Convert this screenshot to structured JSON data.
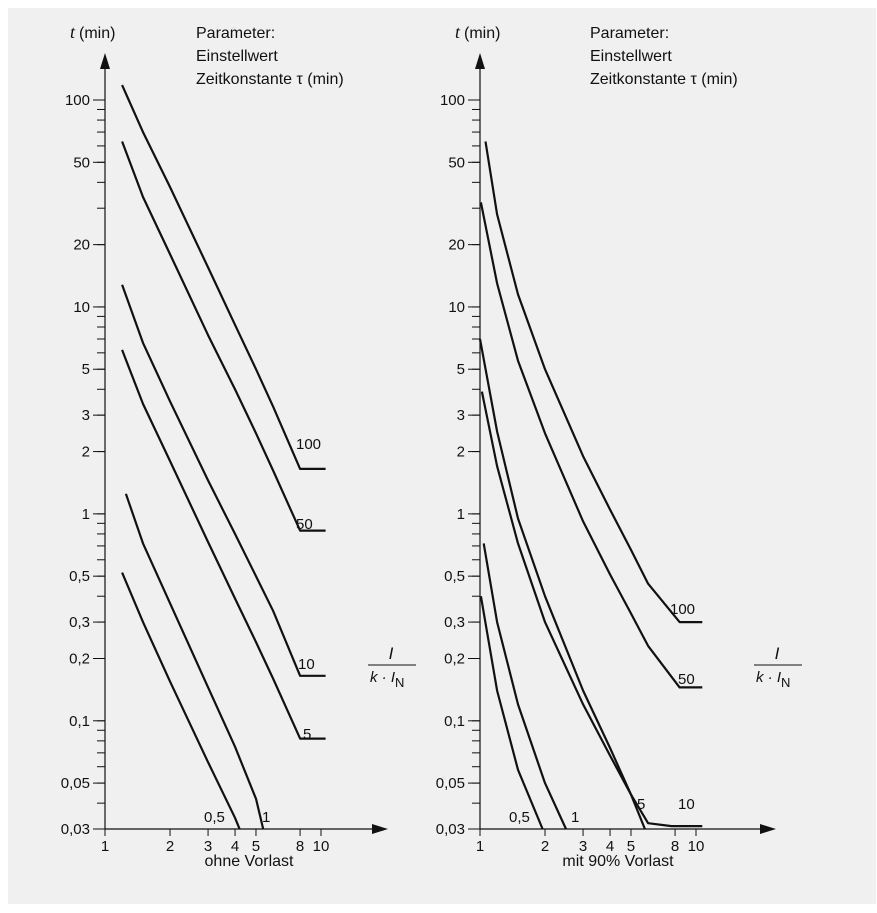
{
  "chart_data": [
    {
      "type": "line",
      "title": "ohne Vorlast",
      "ylabel_italic": "t",
      "ylabel_unit": "(min)",
      "xlabel_num": "I",
      "xlabel_den": "k · I",
      "xlabel_den_sub": "N",
      "x_scale": "log",
      "y_scale": "log",
      "xlim": [
        1,
        10
      ],
      "ylim": [
        0.03,
        100
      ],
      "x_ticks": [
        {
          "v": 1,
          "label": "1"
        },
        {
          "v": 2,
          "label": "2"
        },
        {
          "v": 3,
          "label": "3"
        },
        {
          "v": 4,
          "label": "4"
        },
        {
          "v": 5,
          "label": "5"
        },
        {
          "v": 8,
          "label": "8"
        },
        {
          "v": 10,
          "label": "10"
        }
      ],
      "y_ticks": [
        {
          "v": 100,
          "label": "100"
        },
        {
          "v": 50,
          "label": "50"
        },
        {
          "v": 20,
          "label": "20"
        },
        {
          "v": 10,
          "label": "10"
        },
        {
          "v": 5,
          "label": "5"
        },
        {
          "v": 3,
          "label": "3"
        },
        {
          "v": 2,
          "label": "2"
        },
        {
          "v": 1,
          "label": "1"
        },
        {
          "v": 0.5,
          "label": "0,5"
        },
        {
          "v": 0.3,
          "label": "0,3"
        },
        {
          "v": 0.2,
          "label": "0,2"
        },
        {
          "v": 0.1,
          "label": "0,1"
        },
        {
          "v": 0.05,
          "label": "0,05"
        },
        {
          "v": 0.03,
          "label": "0,03"
        }
      ],
      "parameter_lines": [
        "Parameter:",
        "Einstellwert",
        "Zeitkonstante τ (min)"
      ],
      "grid": false,
      "series": [
        {
          "name": "100",
          "x": [
            1.2,
            1.5,
            2,
            3,
            4,
            5,
            6,
            8,
            10.5
          ],
          "y": [
            118,
            70,
            38,
            15.5,
            8.2,
            5,
            3.3,
            1.65,
            1.65
          ]
        },
        {
          "name": "50",
          "x": [
            1.2,
            1.5,
            2,
            3,
            4,
            5,
            6,
            8,
            10.5
          ],
          "y": [
            63,
            34,
            18,
            7.3,
            4,
            2.45,
            1.62,
            0.83,
            0.83
          ]
        },
        {
          "name": "10",
          "x": [
            1.2,
            1.5,
            2,
            3,
            4,
            5,
            6,
            8,
            10.5
          ],
          "y": [
            12.8,
            6.7,
            3.5,
            1.45,
            0.8,
            0.5,
            0.34,
            0.165,
            0.165
          ]
        },
        {
          "name": "5",
          "x": [
            1.2,
            1.5,
            2,
            3,
            4,
            5,
            6,
            8,
            10.5
          ],
          "y": [
            6.2,
            3.4,
            1.8,
            0.73,
            0.39,
            0.24,
            0.16,
            0.082,
            0.082
          ]
        },
        {
          "name": "1",
          "x": [
            1.25,
            1.5,
            2,
            3,
            4,
            5,
            5.4
          ],
          "y": [
            1.25,
            0.72,
            0.37,
            0.145,
            0.075,
            0.042,
            0.03
          ]
        },
        {
          "name": "0,5",
          "x": [
            1.2,
            1.5,
            2,
            3,
            4,
            4.2
          ],
          "y": [
            0.52,
            0.3,
            0.155,
            0.063,
            0.034,
            0.03
          ]
        }
      ]
    },
    {
      "type": "line",
      "title": "mit 90% Vorlast",
      "ylabel_italic": "t",
      "ylabel_unit": "(min)",
      "xlabel_num": "I",
      "xlabel_den": "k · I",
      "xlabel_den_sub": "N",
      "x_scale": "log",
      "y_scale": "log",
      "xlim": [
        1,
        10
      ],
      "ylim": [
        0.03,
        100
      ],
      "x_ticks": [
        {
          "v": 1,
          "label": "1"
        },
        {
          "v": 2,
          "label": "2"
        },
        {
          "v": 3,
          "label": "3"
        },
        {
          "v": 4,
          "label": "4"
        },
        {
          "v": 5,
          "label": "5"
        },
        {
          "v": 8,
          "label": "8"
        },
        {
          "v": 10,
          "label": "10"
        }
      ],
      "y_ticks": [
        {
          "v": 100,
          "label": "100"
        },
        {
          "v": 50,
          "label": "50"
        },
        {
          "v": 20,
          "label": "20"
        },
        {
          "v": 10,
          "label": "10"
        },
        {
          "v": 5,
          "label": "5"
        },
        {
          "v": 3,
          "label": "3"
        },
        {
          "v": 2,
          "label": "2"
        },
        {
          "v": 1,
          "label": "1"
        },
        {
          "v": 0.5,
          "label": "0,5"
        },
        {
          "v": 0.3,
          "label": "0,3"
        },
        {
          "v": 0.2,
          "label": "0,2"
        },
        {
          "v": 0.1,
          "label": "0,1"
        },
        {
          "v": 0.05,
          "label": "0,05"
        },
        {
          "v": 0.03,
          "label": "0,03"
        }
      ],
      "parameter_lines": [
        "Parameter:",
        "Einstellwert",
        "Zeitkonstante τ (min)"
      ],
      "grid": false,
      "series": [
        {
          "name": "100",
          "x": [
            1.06,
            1.2,
            1.5,
            2,
            3,
            4,
            5,
            6,
            8.4,
            10.7
          ],
          "y": [
            63,
            28,
            11.5,
            5,
            1.9,
            1.05,
            0.67,
            0.46,
            0.3,
            0.3
          ]
        },
        {
          "name": "50",
          "x": [
            1.01,
            1.2,
            1.5,
            2,
            3,
            4,
            5,
            6,
            8.4,
            10.7
          ],
          "y": [
            32,
            13,
            5.5,
            2.45,
            0.92,
            0.51,
            0.33,
            0.23,
            0.145,
            0.145
          ]
        },
        {
          "name": "10",
          "x": [
            1.02,
            1.2,
            1.5,
            2,
            3,
            4,
            5,
            6,
            7.7,
            10.7
          ],
          "y": [
            3.9,
            1.7,
            0.72,
            0.3,
            0.12,
            0.068,
            0.044,
            0.032,
            0.031,
            0.031
          ]
        },
        {
          "name": "5",
          "x": [
            1.0,
            1.2,
            1.5,
            2,
            3,
            4,
            5,
            5.8
          ],
          "y": [
            7,
            2.5,
            0.95,
            0.4,
            0.14,
            0.074,
            0.044,
            0.03
          ]
        },
        {
          "name": "1",
          "x": [
            1.04,
            1.2,
            1.5,
            2,
            2.5
          ],
          "y": [
            0.72,
            0.3,
            0.12,
            0.05,
            0.03
          ]
        },
        {
          "name": "0,5",
          "x": [
            1.01,
            1.2,
            1.5,
            1.95
          ],
          "y": [
            0.4,
            0.14,
            0.058,
            0.03
          ]
        }
      ]
    }
  ]
}
